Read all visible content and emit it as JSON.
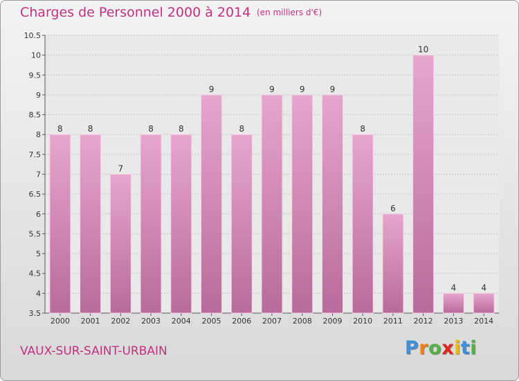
{
  "header": {
    "title": "Charges de Personnel 2000 à 2014",
    "unit": "(en milliers d'€)"
  },
  "footer": {
    "city": "VAUX-SUR-SAINT-URBAIN",
    "logo_letters": [
      "P",
      "r",
      "o",
      "x",
      "i",
      "t",
      "i"
    ],
    "logo_colors": [
      "#3c8fd8",
      "#f07f1a",
      "#55b247",
      "#e0271f",
      "#f5b800",
      "#3c8fd8",
      "#55b247"
    ]
  },
  "chart_data": {
    "type": "bar",
    "title": "Charges de Personnel 2000 à 2014",
    "subtitle": "(en milliers d'€)",
    "xlabel": "",
    "ylabel": "",
    "categories": [
      "2000",
      "2001",
      "2002",
      "2003",
      "2004",
      "2005",
      "2006",
      "2007",
      "2008",
      "2009",
      "2010",
      "2011",
      "2012",
      "2013",
      "2014"
    ],
    "values": [
      8,
      8,
      7,
      8,
      8,
      9,
      8,
      9,
      9,
      9,
      8,
      6,
      10,
      4,
      4
    ],
    "ylim": [
      3.5,
      10.5
    ],
    "yticks": [
      "3.5",
      "4",
      "4.5",
      "5",
      "5.5",
      "6",
      "6.5",
      "7",
      "7.5",
      "8",
      "8.5",
      "9",
      "9.5",
      "10",
      "10.5"
    ],
    "grid": true,
    "bar_color": "#d98ebb"
  }
}
